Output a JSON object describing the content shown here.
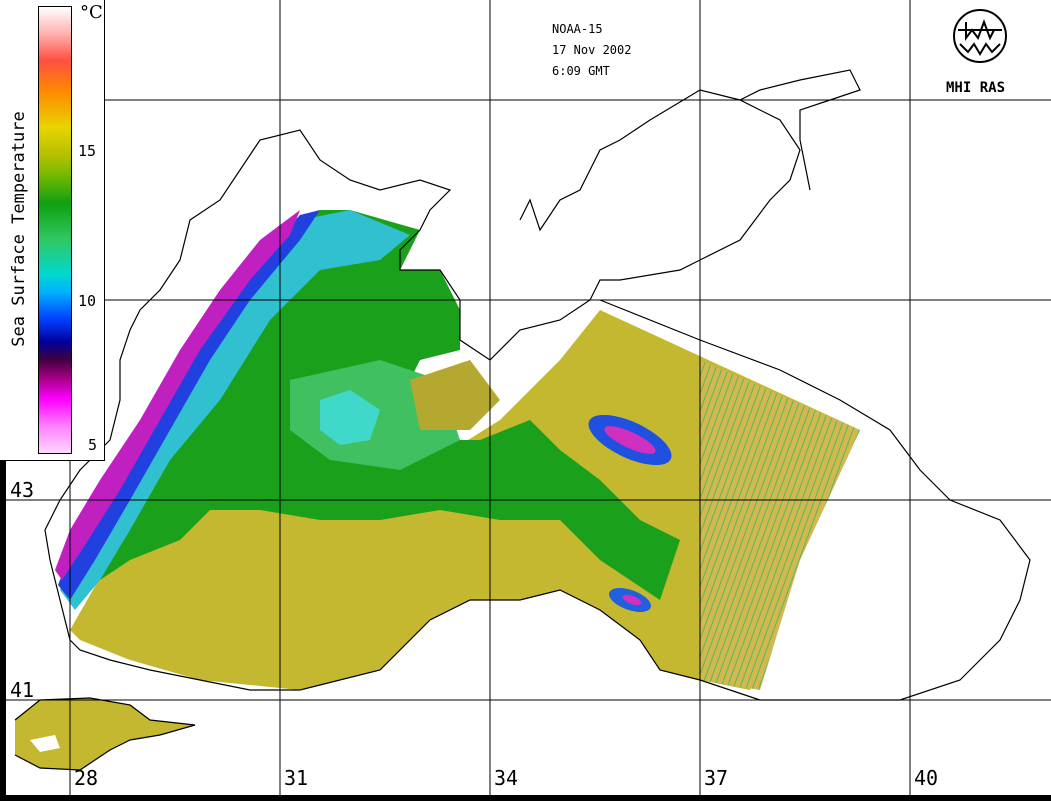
{
  "header": {
    "satellite": "NOAA-15",
    "date": "17 Nov 2002",
    "time": "6:09 GMT"
  },
  "logo": {
    "text": "MHI RAS",
    "icon": "mhi-ras-logo"
  },
  "legend": {
    "title": "Sea Surface Temperature",
    "unit": "°C",
    "ticks": [
      "15",
      "10",
      "5"
    ]
  },
  "axes": {
    "latitudes": [
      "43",
      "41"
    ],
    "longitudes": [
      "28",
      "31",
      "34",
      "37",
      "40"
    ]
  },
  "colors": {
    "land_outline": "#000000",
    "warm_sea": "#c8c020",
    "mid_sea": "#20a020",
    "cool_sea": "#20d0c0",
    "cold_sea": "#1030e0",
    "coldest_sea": "#d020c0"
  }
}
